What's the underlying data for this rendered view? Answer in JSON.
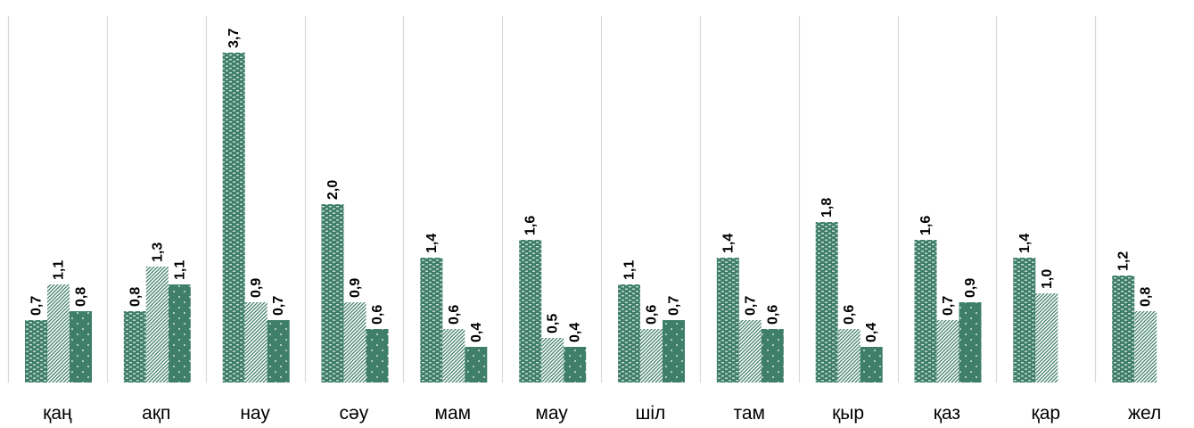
{
  "chart_data": {
    "type": "bar",
    "title": "",
    "xlabel": "",
    "ylabel": "",
    "ylim": [
      0,
      4.0
    ],
    "grid": false,
    "legend": "none",
    "categories": [
      "қаң",
      "ақп",
      "нау",
      "сәу",
      "мам",
      "мау",
      "шіл",
      "там",
      "қыр",
      "қаз",
      "қар",
      "жел"
    ],
    "series": [
      {
        "pattern": "brick",
        "color": "#3f7f6a",
        "values": [
          0.7,
          0.8,
          3.7,
          2.0,
          1.4,
          1.6,
          1.1,
          1.4,
          1.8,
          1.6,
          1.4,
          1.2
        ],
        "labels": [
          "0,7",
          "0,8",
          "3,7",
          "2,0",
          "1,4",
          "1,6",
          "1,1",
          "1,4",
          "1,8",
          "1,6",
          "1,4",
          "1,2"
        ]
      },
      {
        "pattern": "diagonal",
        "color": "#3f7f6a",
        "values": [
          1.1,
          1.3,
          0.9,
          0.9,
          0.6,
          0.5,
          0.6,
          0.7,
          0.6,
          0.7,
          1.0,
          0.8
        ],
        "labels": [
          "1,1",
          "1,3",
          "0,9",
          "0,9",
          "0,6",
          "0,5",
          "0,6",
          "0,7",
          "0,6",
          "0,7",
          "1,0",
          "0,8"
        ]
      },
      {
        "pattern": "dots",
        "color": "#3f7f6a",
        "values": [
          0.8,
          1.1,
          0.7,
          0.6,
          0.4,
          0.4,
          0.7,
          0.6,
          0.4,
          0.9,
          null,
          null
        ],
        "labels": [
          "0,8",
          "1,1",
          "0,7",
          "0,6",
          "0,4",
          "0,4",
          "0,7",
          "0,6",
          "0,4",
          "0,9",
          "",
          ""
        ]
      }
    ]
  }
}
